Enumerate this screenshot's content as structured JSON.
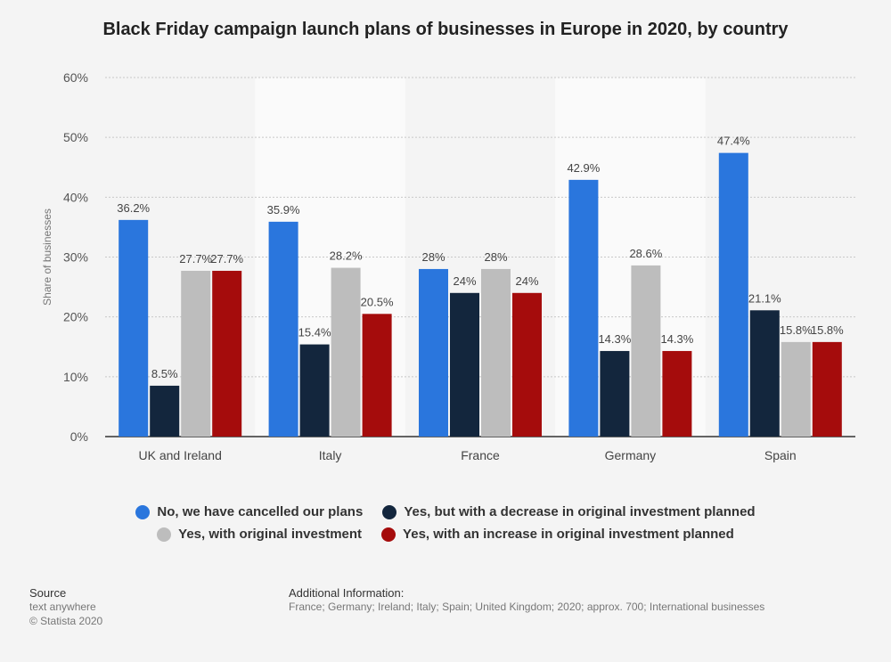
{
  "page": {
    "source_label": "Source",
    "source_lines": [
      "text anywhere",
      "© Statista 2020"
    ],
    "additional_info_label": "Additional Information:",
    "additional_info_text": "France; Germany; Ireland; Italy; Spain; United Kingdom; 2020; approx. 700; International businesses"
  },
  "chart_data": {
    "type": "bar",
    "title": "Black Friday campaign launch plans of businesses in Europe in 2020, by country",
    "xlabel": "",
    "ylabel": "Share of businesses",
    "ylim": [
      0,
      60
    ],
    "yticks": [
      "0%",
      "10%",
      "20%",
      "30%",
      "40%",
      "50%",
      "60%"
    ],
    "grid": true,
    "legend_position": "bottom",
    "categories": [
      "UK and Ireland",
      "Italy",
      "France",
      "Germany",
      "Spain"
    ],
    "series": [
      {
        "name": "No, we have cancelled our plans",
        "color": "#2a76dd",
        "values": [
          36.2,
          35.9,
          28,
          42.9,
          47.4
        ],
        "labels": [
          "36.2%",
          "35.9%",
          "28%",
          "42.9%",
          "47.4%"
        ]
      },
      {
        "name": "Yes, but with a decrease in original investment planned",
        "color": "#13263d",
        "values": [
          8.5,
          15.4,
          24,
          14.3,
          21.1
        ],
        "labels": [
          "8.5%",
          "15.4%",
          "24%",
          "14.3%",
          "21.1%"
        ]
      },
      {
        "name": "Yes, with original investment",
        "color": "#bdbdbd",
        "values": [
          27.7,
          28.2,
          28,
          28.6,
          15.8
        ],
        "labels": [
          "27.7%",
          "28.2%",
          "28%",
          "28.6%",
          "15.8%"
        ]
      },
      {
        "name": "Yes, with an increase in original investment planned",
        "color": "#a50c0c",
        "values": [
          27.7,
          20.5,
          24,
          14.3,
          15.8
        ],
        "labels": [
          "27.7%",
          "20.5%",
          "24%",
          "14.3%",
          "15.8%"
        ]
      }
    ]
  }
}
